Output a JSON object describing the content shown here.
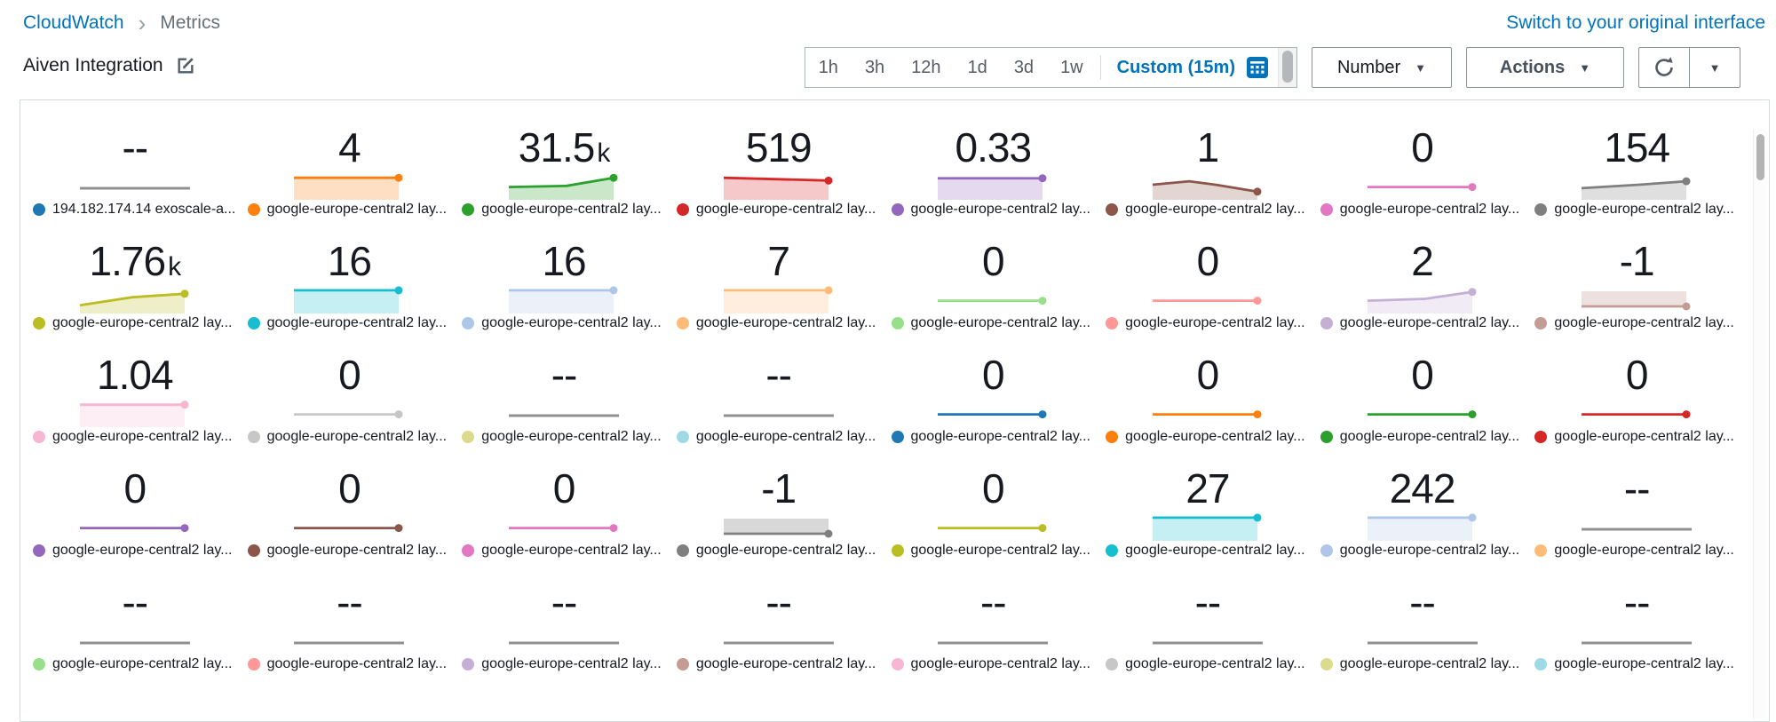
{
  "breadcrumb": {
    "app": "CloudWatch",
    "page": "Metrics"
  },
  "header": {
    "dashboard_title": "Aiven Integration",
    "switch_link": "Switch to your original interface"
  },
  "toolbar": {
    "time_ranges": [
      "1h",
      "3h",
      "12h",
      "1d",
      "3d",
      "1w"
    ],
    "custom_range": "Custom (15m)",
    "number_dropdown": "Number",
    "actions_button": "Actions",
    "icons": [
      "calendar-icon",
      "refresh-icon",
      "chevron-down-icon"
    ]
  },
  "colors": {
    "link": "#0073bb",
    "dash_line": "#909090",
    "border": "#879596"
  },
  "cards": [
    {
      "value": "--",
      "unit": "",
      "color": "#1f77b4",
      "label": "194.182.174.14 exoscale-a...",
      "spark": "dash"
    },
    {
      "value": "4",
      "unit": "",
      "color": "#ff7f0e",
      "label": "google-europe-central2 lay...",
      "spark": "area",
      "points": [
        [
          0,
          0.2
        ],
        [
          1,
          0.2
        ]
      ]
    },
    {
      "value": "31.5",
      "unit": "k",
      "color": "#2ca02c",
      "label": "google-europe-central2 lay...",
      "spark": "area",
      "points": [
        [
          0,
          0.6
        ],
        [
          0.55,
          0.55
        ],
        [
          1,
          0.2
        ]
      ]
    },
    {
      "value": "519",
      "unit": "",
      "color": "#d62728",
      "label": "google-europe-central2 lay...",
      "spark": "area",
      "points": [
        [
          0,
          0.2
        ],
        [
          1,
          0.32
        ]
      ]
    },
    {
      "value": "0.33",
      "unit": "",
      "color": "#9467bd",
      "label": "google-europe-central2 lay...",
      "spark": "area",
      "points": [
        [
          0,
          0.22
        ],
        [
          1,
          0.22
        ]
      ]
    },
    {
      "value": "1",
      "unit": "",
      "color": "#8c564b",
      "label": "google-europe-central2 lay...",
      "spark": "area",
      "points": [
        [
          0,
          0.5
        ],
        [
          0.35,
          0.35
        ],
        [
          0.6,
          0.5
        ],
        [
          1,
          0.8
        ]
      ]
    },
    {
      "value": "0",
      "unit": "",
      "color": "#e377c2",
      "label": "google-europe-central2 lay...",
      "spark": "line",
      "points": [
        [
          0,
          0.6
        ],
        [
          1,
          0.6
        ]
      ]
    },
    {
      "value": "154",
      "unit": "",
      "color": "#7f7f7f",
      "label": "google-europe-central2 lay...",
      "spark": "area",
      "points": [
        [
          0,
          0.65
        ],
        [
          0.55,
          0.5
        ],
        [
          1,
          0.35
        ]
      ]
    },
    {
      "value": "1.76",
      "unit": "k",
      "color": "#bcbd22",
      "label": "google-europe-central2 lay...",
      "spark": "area",
      "points": [
        [
          0,
          0.8
        ],
        [
          0.5,
          0.45
        ],
        [
          1,
          0.3
        ]
      ]
    },
    {
      "value": "16",
      "unit": "",
      "color": "#17becf",
      "label": "google-europe-central2 lay...",
      "spark": "area",
      "points": [
        [
          0,
          0.15
        ],
        [
          1,
          0.15
        ]
      ]
    },
    {
      "value": "16",
      "unit": "",
      "color": "#aec7e8",
      "label": "google-europe-central2 lay...",
      "spark": "area",
      "points": [
        [
          0,
          0.15
        ],
        [
          1,
          0.15
        ]
      ]
    },
    {
      "value": "7",
      "unit": "",
      "color": "#ffbb78",
      "label": "google-europe-central2 lay...",
      "spark": "area",
      "points": [
        [
          0,
          0.15
        ],
        [
          1,
          0.15
        ]
      ]
    },
    {
      "value": "0",
      "unit": "",
      "color": "#98df8a",
      "label": "google-europe-central2 lay...",
      "spark": "line",
      "points": [
        [
          0,
          0.6
        ],
        [
          1,
          0.6
        ]
      ]
    },
    {
      "value": "0",
      "unit": "",
      "color": "#ff9896",
      "label": "google-europe-central2 lay...",
      "spark": "line",
      "points": [
        [
          0,
          0.6
        ],
        [
          1,
          0.6
        ]
      ]
    },
    {
      "value": "2",
      "unit": "",
      "color": "#c5b0d5",
      "label": "google-europe-central2 lay...",
      "spark": "area",
      "points": [
        [
          0,
          0.6
        ],
        [
          0.55,
          0.52
        ],
        [
          1,
          0.22
        ]
      ]
    },
    {
      "value": "-1",
      "unit": "",
      "color": "#c49c94",
      "label": "google-europe-central2 lay...",
      "spark": "area_neg"
    },
    {
      "value": "1.04",
      "unit": "",
      "color": "#f7b6d2",
      "label": "google-europe-central2 lay...",
      "spark": "area",
      "points": [
        [
          0,
          0.18
        ],
        [
          1,
          0.18
        ]
      ]
    },
    {
      "value": "0",
      "unit": "",
      "color": "#c7c7c7",
      "label": "google-europe-central2 lay...",
      "spark": "line",
      "points": [
        [
          0,
          0.6
        ],
        [
          1,
          0.6
        ]
      ]
    },
    {
      "value": "--",
      "unit": "",
      "color": "#dbdb8d",
      "label": "google-europe-central2 lay...",
      "spark": "dash"
    },
    {
      "value": "--",
      "unit": "",
      "color": "#9edae5",
      "label": "google-europe-central2 lay...",
      "spark": "dash"
    },
    {
      "value": "0",
      "unit": "",
      "color": "#1f77b4",
      "label": "google-europe-central2 lay...",
      "spark": "line",
      "points": [
        [
          0,
          0.6
        ],
        [
          1,
          0.6
        ]
      ]
    },
    {
      "value": "0",
      "unit": "",
      "color": "#ff7f0e",
      "label": "google-europe-central2 lay...",
      "spark": "line",
      "points": [
        [
          0,
          0.6
        ],
        [
          1,
          0.6
        ]
      ]
    },
    {
      "value": "0",
      "unit": "",
      "color": "#2ca02c",
      "label": "google-europe-central2 lay...",
      "spark": "line",
      "points": [
        [
          0,
          0.6
        ],
        [
          1,
          0.6
        ]
      ]
    },
    {
      "value": "0",
      "unit": "",
      "color": "#d62728",
      "label": "google-europe-central2 lay...",
      "spark": "line",
      "points": [
        [
          0,
          0.6
        ],
        [
          1,
          0.6
        ]
      ]
    },
    {
      "value": "0",
      "unit": "",
      "color": "#9467bd",
      "label": "google-europe-central2 lay...",
      "spark": "line",
      "points": [
        [
          0,
          0.6
        ],
        [
          1,
          0.6
        ]
      ]
    },
    {
      "value": "0",
      "unit": "",
      "color": "#8c564b",
      "label": "google-europe-central2 lay...",
      "spark": "line",
      "points": [
        [
          0,
          0.6
        ],
        [
          1,
          0.6
        ]
      ]
    },
    {
      "value": "0",
      "unit": "",
      "color": "#e377c2",
      "label": "google-europe-central2 lay...",
      "spark": "line",
      "points": [
        [
          0,
          0.6
        ],
        [
          1,
          0.6
        ]
      ]
    },
    {
      "value": "-1",
      "unit": "",
      "color": "#7f7f7f",
      "label": "google-europe-central2 lay...",
      "spark": "area_neg"
    },
    {
      "value": "0",
      "unit": "",
      "color": "#bcbd22",
      "label": "google-europe-central2 lay...",
      "spark": "line",
      "points": [
        [
          0,
          0.6
        ],
        [
          1,
          0.6
        ]
      ]
    },
    {
      "value": "27",
      "unit": "",
      "color": "#17becf",
      "label": "google-europe-central2 lay...",
      "spark": "area",
      "points": [
        [
          0,
          0.15
        ],
        [
          1,
          0.15
        ]
      ]
    },
    {
      "value": "242",
      "unit": "",
      "color": "#aec7e8",
      "label": "google-europe-central2 lay...",
      "spark": "area",
      "points": [
        [
          0,
          0.15
        ],
        [
          1,
          0.15
        ]
      ]
    },
    {
      "value": "--",
      "unit": "",
      "color": "#ffbb78",
      "label": "google-europe-central2 lay...",
      "spark": "dash"
    },
    {
      "value": "--",
      "unit": "",
      "color": "#98df8a",
      "label": "google-europe-central2 lay...",
      "spark": "dash"
    },
    {
      "value": "--",
      "unit": "",
      "color": "#ff9896",
      "label": "google-europe-central2 lay...",
      "spark": "dash"
    },
    {
      "value": "--",
      "unit": "",
      "color": "#c5b0d5",
      "label": "google-europe-central2 lay...",
      "spark": "dash"
    },
    {
      "value": "--",
      "unit": "",
      "color": "#c49c94",
      "label": "google-europe-central2 lay...",
      "spark": "dash"
    },
    {
      "value": "--",
      "unit": "",
      "color": "#f7b6d2",
      "label": "google-europe-central2 lay...",
      "spark": "dash"
    },
    {
      "value": "--",
      "unit": "",
      "color": "#c7c7c7",
      "label": "google-europe-central2 lay...",
      "spark": "dash"
    },
    {
      "value": "--",
      "unit": "",
      "color": "#dbdb8d",
      "label": "google-europe-central2 lay...",
      "spark": "dash"
    },
    {
      "value": "--",
      "unit": "",
      "color": "#9edae5",
      "label": "google-europe-central2 lay...",
      "spark": "dash"
    }
  ]
}
